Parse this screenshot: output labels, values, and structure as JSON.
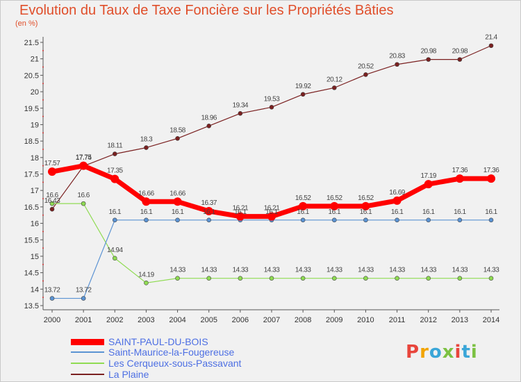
{
  "header": {
    "title": "Evolution du Taux de Taxe Foncière sur les Propriétés Bâties",
    "unit": "(en %)"
  },
  "chart_data": {
    "type": "line",
    "title": "Evolution du Taux de Taxe Foncière sur les Propriétés Bâties",
    "ylabel": "(en %)",
    "xlabel": "",
    "x": [
      "2000",
      "2001",
      "2002",
      "2003",
      "2004",
      "2005",
      "2006",
      "2007",
      "2008",
      "2009",
      "2010",
      "2011",
      "2012",
      "2013",
      "2014"
    ],
    "ylim": [
      13.5,
      21.5
    ],
    "yticks": [
      "13.5",
      "14",
      "14.5",
      "15",
      "15.5",
      "16",
      "16.5",
      "17",
      "17.5",
      "18",
      "18.5",
      "19",
      "19.5",
      "20",
      "20.5",
      "21",
      "21.5"
    ],
    "grid": false,
    "legend_position": "bottom",
    "series": [
      {
        "name": "SAINT-PAUL-DU-BOIS",
        "color": "#ff0000",
        "values": [
          17.57,
          17.75,
          17.35,
          16.66,
          16.66,
          16.37,
          16.21,
          16.21,
          16.52,
          16.52,
          16.52,
          16.69,
          17.19,
          17.36,
          17.36
        ],
        "labels": [
          "17.57",
          "17.75",
          "17.35",
          "16.66",
          "16.66",
          "16.37",
          "16.21",
          "16.21",
          "16.52",
          "16.52",
          "16.52",
          "16.69",
          "17.19",
          "17.36",
          "17.36"
        ]
      },
      {
        "name": "Saint-Maurice-la-Fougereuse",
        "color": "#5b93d3",
        "values": [
          13.72,
          13.72,
          16.1,
          16.1,
          16.1,
          16.1,
          16.1,
          16.1,
          16.1,
          16.1,
          16.1,
          16.1,
          16.1,
          16.1,
          16.1
        ],
        "labels": [
          "13.72",
          "13.72",
          "16.1",
          "16.1",
          "16.1",
          "16.1",
          "16.1",
          "16.1",
          "16.1",
          "16.1",
          "16.1",
          "16.1",
          "16.1",
          "16.1",
          "16.1"
        ]
      },
      {
        "name": "Les Cerqueux-sous-Passavant",
        "color": "#8fdb52",
        "values": [
          16.6,
          16.6,
          14.94,
          14.19,
          14.33,
          14.33,
          14.33,
          14.33,
          14.33,
          14.33,
          14.33,
          14.33,
          14.33,
          14.33,
          14.33
        ],
        "labels": [
          "16.6",
          "16.6",
          "14.94",
          "14.19",
          "14.33",
          "14.33",
          "14.33",
          "14.33",
          "14.33",
          "14.33",
          "14.33",
          "14.33",
          "14.33",
          "14.33",
          "14.33"
        ]
      },
      {
        "name": "La Plaine",
        "color": "#7a2020",
        "values": [
          16.43,
          17.74,
          18.11,
          18.3,
          18.58,
          18.96,
          19.34,
          19.53,
          19.92,
          20.12,
          20.52,
          20.83,
          20.98,
          20.98,
          21.4
        ],
        "labels": [
          "16.43",
          "17.74",
          "18.11",
          "18.3",
          "18.58",
          "18.96",
          "19.34",
          "19.53",
          "19.92",
          "20.12",
          "20.52",
          "20.83",
          "20.98",
          "20.98",
          "21.4"
        ]
      }
    ]
  },
  "legend": {
    "items": [
      {
        "label": "SAINT-PAUL-DU-BOIS",
        "color": "#ff0000"
      },
      {
        "label": "Saint-Maurice-la-Fougereuse",
        "color": "#5b93d3"
      },
      {
        "label": "Les Cerqueux-sous-Passavant",
        "color": "#8fdb52"
      },
      {
        "label": "La Plaine",
        "color": "#7a2020"
      }
    ]
  },
  "logo": {
    "text": "Proxiti",
    "colors": [
      "#e8453c",
      "#f2a400",
      "#3aa6d8",
      "#7cc142",
      "#e8453c",
      "#3aa6d8",
      "#7cc142"
    ]
  }
}
